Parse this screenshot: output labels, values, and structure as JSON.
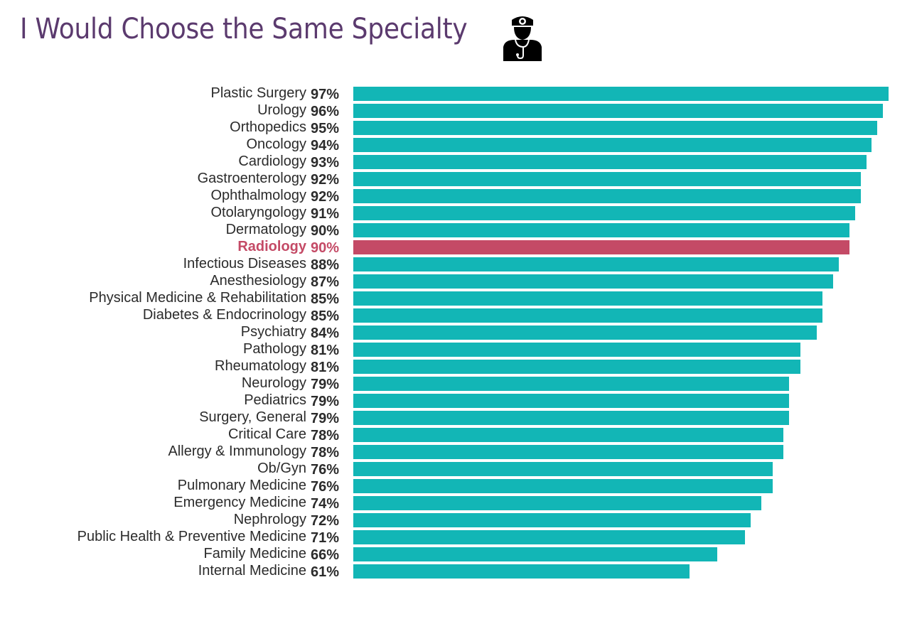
{
  "chart_data": {
    "type": "bar",
    "orientation": "horizontal",
    "title": "I Would Choose the Same Specialty",
    "title_icon": "doctor-stethoscope-icon",
    "value_format": "percent",
    "xlim": [
      0,
      100
    ],
    "grid": false,
    "highlight": "Radiology",
    "colors": {
      "bar": "#12b6b6",
      "highlight": "#c44a66",
      "title": "#5b3a6e",
      "text": "#2b2b2b"
    },
    "categories": [
      "Plastic Surgery",
      "Urology",
      "Orthopedics",
      "Oncology",
      "Cardiology",
      "Gastroenterology",
      "Ophthalmology",
      "Otolaryngology",
      "Dermatology",
      "Radiology",
      "Infectious Diseases",
      "Anesthesiology",
      "Physical Medicine & Rehabilitation",
      "Diabetes & Endocrinology",
      "Psychiatry",
      "Pathology",
      "Rheumatology",
      "Neurology",
      "Pediatrics",
      "Surgery, General",
      "Critical Care",
      "Allergy & Immunology",
      "Ob/Gyn",
      "Pulmonary Medicine",
      "Emergency Medicine",
      "Nephrology",
      "Public Health & Preventive Medicine",
      "Family Medicine",
      "Internal Medicine"
    ],
    "values": [
      97,
      96,
      95,
      94,
      93,
      92,
      92,
      91,
      90,
      90,
      88,
      87,
      85,
      85,
      84,
      81,
      81,
      79,
      79,
      79,
      78,
      78,
      76,
      76,
      74,
      72,
      71,
      66,
      61
    ],
    "labels": [
      "97%",
      "96%",
      "95%",
      "94%",
      "93%",
      "92%",
      "92%",
      "91%",
      "90%",
      "90%",
      "88%",
      "87%",
      "85%",
      "85%",
      "84%",
      "81%",
      "81%",
      "79%",
      "79%",
      "79%",
      "78%",
      "78%",
      "76%",
      "76%",
      "74%",
      "72%",
      "71%",
      "66%",
      "61%"
    ]
  }
}
